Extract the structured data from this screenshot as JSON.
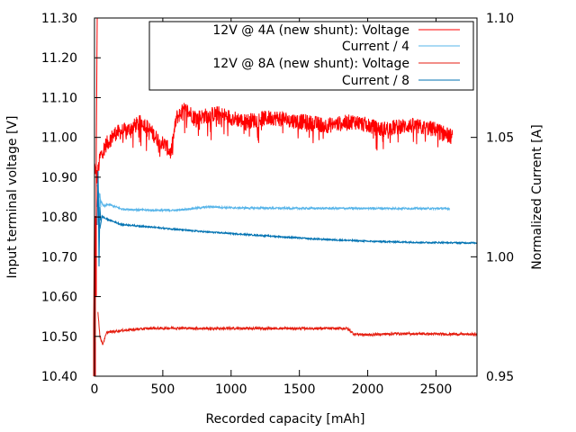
{
  "chart_data": {
    "type": "line",
    "title": "",
    "xlabel": "Recorded capacity [mAh]",
    "ylabel": "Input terminal voltage [V]",
    "y2label": "Normalized Current [A]",
    "xlim": [
      0,
      2800
    ],
    "ylim": [
      10.4,
      11.3
    ],
    "y2lim": [
      0.95,
      1.1
    ],
    "x_ticks": [
      0,
      500,
      1000,
      1500,
      2000,
      2500
    ],
    "y_ticks": [
      "10.40",
      "10.50",
      "10.60",
      "10.70",
      "10.80",
      "10.90",
      "11.00",
      "11.10",
      "11.20",
      "11.30"
    ],
    "y2_ticks": [
      "0.95",
      "1.00",
      "1.05",
      "1.10"
    ],
    "legend_position": "top-right",
    "grid": false,
    "series": [
      {
        "name": "12V @ 4A (new shunt): Voltage",
        "axis": "y1",
        "color": "#ff0000",
        "noise": 0.02,
        "points": [
          [
            0,
            10.93
          ],
          [
            20,
            10.9
          ],
          [
            40,
            10.95
          ],
          [
            80,
            10.98
          ],
          [
            150,
            11.01
          ],
          [
            250,
            11.02
          ],
          [
            350,
            11.04
          ],
          [
            450,
            11.0
          ],
          [
            520,
            10.98
          ],
          [
            560,
            10.96
          ],
          [
            600,
            11.05
          ],
          [
            660,
            11.07
          ],
          [
            750,
            11.05
          ],
          [
            900,
            11.06
          ],
          [
            1100,
            11.04
          ],
          [
            1300,
            11.05
          ],
          [
            1500,
            11.04
          ],
          [
            1700,
            11.03
          ],
          [
            1900,
            11.04
          ],
          [
            2100,
            11.02
          ],
          [
            2300,
            11.03
          ],
          [
            2500,
            11.02
          ],
          [
            2620,
            11.0
          ]
        ]
      },
      {
        "name": "Current / 4",
        "axis": "y2",
        "color": "#56b4e9",
        "noise": 0.0004,
        "points": [
          [
            20,
            1.03
          ],
          [
            40,
            1.024
          ],
          [
            70,
            1.021
          ],
          [
            100,
            1.022
          ],
          [
            200,
            1.02
          ],
          [
            400,
            1.0195
          ],
          [
            600,
            1.0195
          ],
          [
            850,
            1.021
          ],
          [
            1000,
            1.0205
          ],
          [
            1500,
            1.0203
          ],
          [
            2000,
            1.0203
          ],
          [
            2600,
            1.0202
          ]
        ]
      },
      {
        "name": "12V @ 8A (new shunt): Voltage",
        "axis": "y1",
        "color": "#e51e10",
        "noise": 0.003,
        "points": [
          [
            25,
            10.56
          ],
          [
            40,
            10.5
          ],
          [
            60,
            10.48
          ],
          [
            90,
            10.51
          ],
          [
            200,
            10.515
          ],
          [
            400,
            10.52
          ],
          [
            600,
            10.521
          ],
          [
            800,
            10.52
          ],
          [
            1100,
            10.52
          ],
          [
            1500,
            10.52
          ],
          [
            1850,
            10.52
          ],
          [
            1900,
            10.506
          ],
          [
            2000,
            10.504
          ],
          [
            2200,
            10.507
          ],
          [
            2500,
            10.506
          ],
          [
            2800,
            10.505
          ]
        ]
      },
      {
        "name": "Current / 8",
        "axis": "y2",
        "color": "#0072b2",
        "noise": 0.0003,
        "points": [
          [
            30,
            1.015
          ],
          [
            40,
            1.012
          ],
          [
            55,
            1.017
          ],
          [
            80,
            1.016
          ],
          [
            200,
            1.0135
          ],
          [
            500,
            1.012
          ],
          [
            800,
            1.0105
          ],
          [
            1200,
            1.009
          ],
          [
            1600,
            1.0075
          ],
          [
            2000,
            1.0065
          ],
          [
            2400,
            1.006
          ],
          [
            2800,
            1.0058
          ]
        ]
      }
    ]
  }
}
